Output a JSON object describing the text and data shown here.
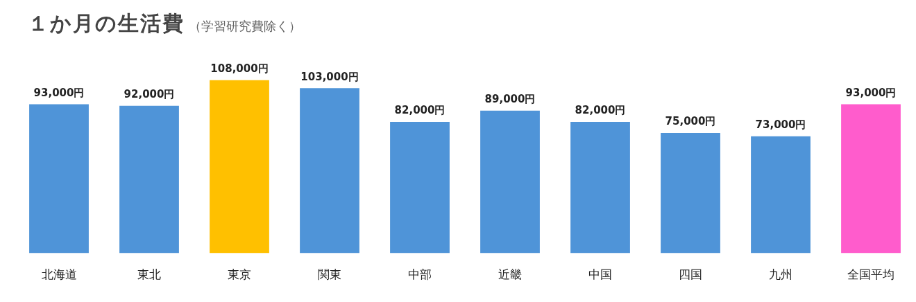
{
  "chart_data": {
    "type": "bar",
    "title": "１か月の生活費",
    "subtitle": "（学習研究費除く）",
    "categories": [
      "北海道",
      "東北",
      "東京",
      "関東",
      "中部",
      "近畿",
      "中国",
      "四国",
      "九州",
      "全国平均"
    ],
    "values": [
      93000,
      92000,
      108000,
      103000,
      82000,
      89000,
      82000,
      75000,
      73000,
      93000
    ],
    "colors": [
      "#4f94d8",
      "#4f94d8",
      "#ffc000",
      "#4f94d8",
      "#4f94d8",
      "#4f94d8",
      "#4f94d8",
      "#4f94d8",
      "#4f94d8",
      "#ff5ccc"
    ],
    "value_labels": [
      "93,000円",
      "92,000円",
      "108,000円",
      "103,000円",
      "82,000円",
      "89,000円",
      "82,000円",
      "75,000円",
      "73,000円",
      "93,000円"
    ],
    "grid": false,
    "legend": false
  }
}
